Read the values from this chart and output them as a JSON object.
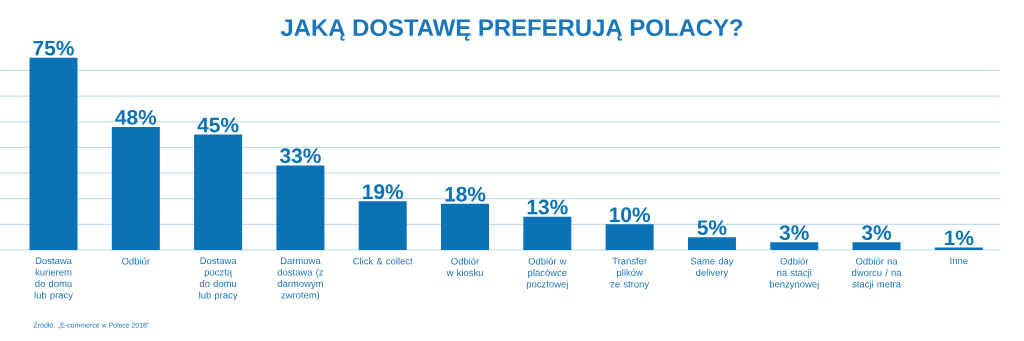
{
  "chart_data": {
    "type": "bar",
    "title": "JAKĄ DOSTAWĘ PREFERUJĄ POLACY?",
    "categories": [
      "Dostawa kurierem do domu lub pracy",
      "Odbiór",
      "Dostawa pocztą do domu lub pracy",
      "Darmowa dostawa (z darmowym zwrotem)",
      "Click & collect",
      "Odbiór w kiosku",
      "Odbiór w placówce pocztowej",
      "Transfer plików ze strony",
      "Same day delivery",
      "Odbiór na stacji benzynowej",
      "Odbiór na dworcu / na stacji metra",
      "Inne"
    ],
    "values": [
      75,
      48,
      45,
      33,
      19,
      18,
      13,
      10,
      5,
      3,
      3,
      1
    ],
    "value_labels": [
      "75%",
      "48%",
      "45%",
      "33%",
      "19%",
      "18%",
      "13%",
      "10%",
      "5%",
      "3%",
      "3%",
      "1%"
    ],
    "color": "#0b72b5",
    "ref_lines": [
      {
        "axis": "y",
        "value": 0,
        "color": "#a9cde8"
      },
      {
        "axis": "y",
        "value": 10,
        "color": "#a9cde8"
      },
      {
        "axis": "y",
        "value": 20,
        "color": "#a9cde8"
      },
      {
        "axis": "y",
        "value": 30,
        "color": "#a9cde8"
      },
      {
        "axis": "y",
        "value": 40,
        "color": "#a9cde8"
      },
      {
        "axis": "y",
        "value": 50,
        "color": "#a9cde8"
      },
      {
        "axis": "y",
        "value": 60,
        "color": "#a9cde8"
      },
      {
        "axis": "y",
        "value": 70,
        "color": "#a9cde8"
      }
    ],
    "tick_labels": "x",
    "annotations": [
      "Źródło: „E-commerce w Polsce 2018\""
    ]
  }
}
